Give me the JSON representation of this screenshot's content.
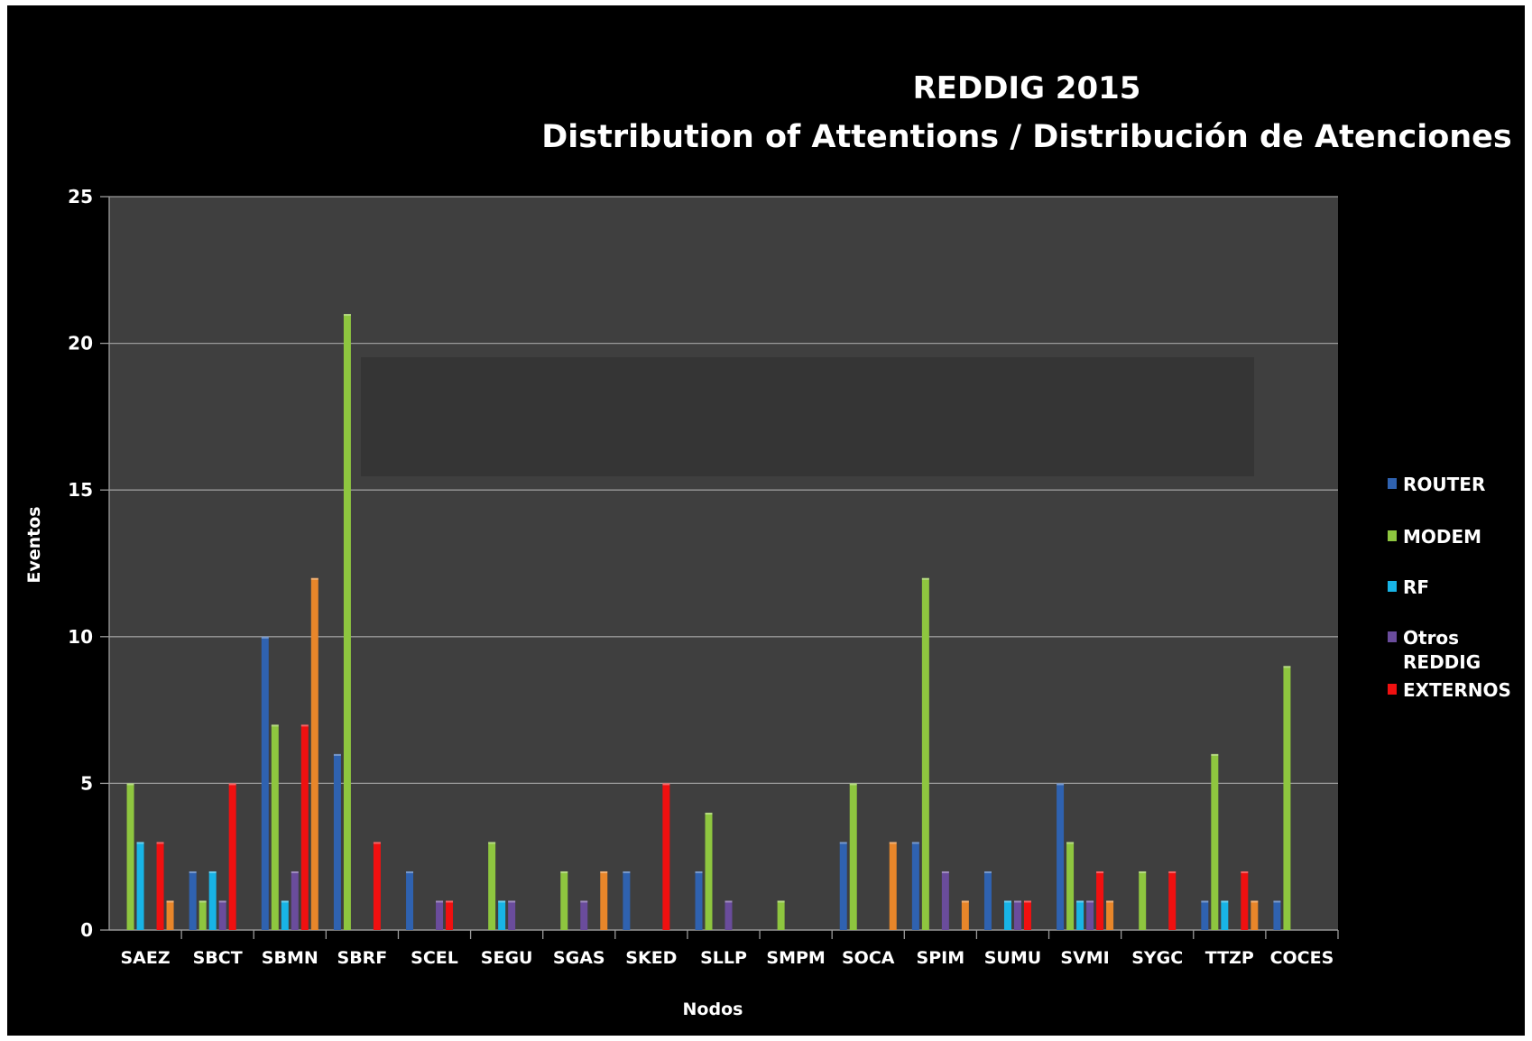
{
  "chart_data": {
    "type": "bar",
    "title": "REDDIG 2015",
    "subtitle": "Distribution of Attentions / Distribución de Atenciones",
    "xlabel": "Nodos",
    "ylabel": "Eventos",
    "ylim": [
      0,
      25
    ],
    "yticks": [
      0,
      5,
      10,
      15,
      20,
      25
    ],
    "grid": true,
    "legend_position": "right",
    "categories": [
      "SAEZ",
      "SBCT",
      "SBMN",
      "SBRF",
      "SCEL",
      "SEGU",
      "SGAS",
      "SKED",
      "SLLP",
      "SMPM",
      "SOCA",
      "SPIM",
      "SUMU",
      "SVMI",
      "SYGC",
      "TTZP",
      "COCES"
    ],
    "series": [
      {
        "name": "ROUTER",
        "color": "#2F62B0",
        "values": [
          0,
          2,
          10,
          6,
          2,
          0,
          0,
          2,
          2,
          0,
          3,
          3,
          2,
          5,
          0,
          1,
          1
        ]
      },
      {
        "name": "MODEM",
        "color": "#8EC63F",
        "values": [
          5,
          1,
          7,
          21,
          0,
          3,
          2,
          0,
          4,
          1,
          5,
          12,
          0,
          3,
          2,
          6,
          9
        ]
      },
      {
        "name": "RF",
        "color": "#18B4E6",
        "values": [
          3,
          2,
          1,
          0,
          0,
          1,
          0,
          0,
          0,
          0,
          0,
          0,
          1,
          1,
          0,
          1,
          0
        ]
      },
      {
        "name": "Otros REDDIG",
        "color": "#6A4C9C",
        "values": [
          0,
          1,
          2,
          0,
          1,
          1,
          1,
          0,
          1,
          0,
          0,
          2,
          1,
          1,
          0,
          0,
          0
        ]
      },
      {
        "name": "EXTERNOS",
        "color": "#F01010",
        "values": [
          3,
          5,
          7,
          3,
          1,
          0,
          0,
          5,
          0,
          0,
          0,
          0,
          1,
          2,
          2,
          2,
          0
        ]
      },
      {
        "name": "",
        "color": "#E8862A",
        "values": [
          1,
          0,
          12,
          0,
          0,
          0,
          2,
          0,
          0,
          0,
          3,
          1,
          0,
          1,
          0,
          1,
          0
        ]
      }
    ]
  },
  "legend": [
    {
      "label": "ROUTER",
      "color": "#2F62B0"
    },
    {
      "label": "MODEM",
      "color": "#8EC63F"
    },
    {
      "label": "RF",
      "color": "#18B4E6"
    },
    {
      "label": "Otros\nREDDIG",
      "color": "#6A4C9C"
    },
    {
      "label": "EXTERNOS",
      "color": "#F01010"
    }
  ]
}
